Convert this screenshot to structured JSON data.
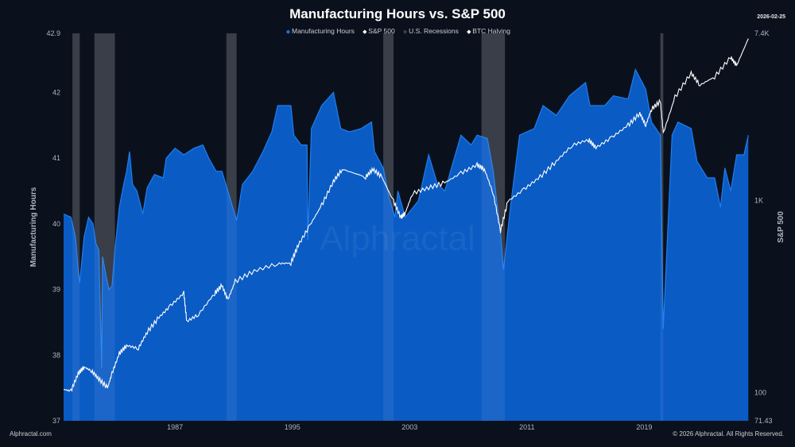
{
  "title": "Manufacturing Hours vs. S&P 500",
  "date": "2026-02-25",
  "footer": {
    "left": "Alphractal.com",
    "right": "© 2026 Alphractal. All Rights Reserved."
  },
  "watermark": "Alphractal",
  "legend": [
    {
      "label": "Manufacturing Hours",
      "color": "#1a73e8"
    },
    {
      "label": "S&P 500",
      "color": "#ffffff"
    },
    {
      "label": "U.S. Recessions",
      "color": "#3a4050"
    },
    {
      "label": "BTC Halving",
      "color": "#ffffff"
    }
  ],
  "chart_data": {
    "type": "area",
    "title": "Manufacturing Hours vs. S&P 500",
    "xlabel": "",
    "xlim": [
      1979.4,
      2026.3
    ],
    "xticks": [
      "1987",
      "1995",
      "2003",
      "2011",
      "2019"
    ],
    "left_axis": {
      "label": "Manufacturing Hours",
      "ylim": [
        37,
        42.9
      ],
      "ticks": [
        "37",
        "38",
        "39",
        "40",
        "41",
        "42",
        "42.9"
      ]
    },
    "right_axis": {
      "label": "S&P 500",
      "scale": "log",
      "ylim": [
        71.43,
        7400
      ],
      "ticks": [
        "71.43",
        "100",
        "1K",
        "7.4K"
      ]
    },
    "grid": false,
    "legend_placement": "top",
    "recessions": [
      [
        1980.0,
        1980.5
      ],
      [
        1981.5,
        1982.9
      ],
      [
        1990.5,
        1991.2
      ],
      [
        2001.2,
        2001.9
      ],
      [
        2007.9,
        2009.5
      ],
      [
        2020.1,
        2020.3
      ]
    ],
    "series": [
      {
        "name": "Manufacturing Hours",
        "type": "area",
        "color": "#0a5bc4",
        "x": [
          1979.4,
          1979.9,
          1980.2,
          1980.4,
          1980.5,
          1980.8,
          1981.1,
          1981.4,
          1981.6,
          1981.8,
          1982.0,
          1982.05,
          1982.3,
          1982.5,
          1982.7,
          1982.9,
          1983.2,
          1983.5,
          1983.7,
          1983.9,
          1984.1,
          1984.4,
          1984.8,
          1985.1,
          1985.6,
          1986.2,
          1986.4,
          1987.0,
          1987.6,
          1988.3,
          1988.9,
          1989.3,
          1989.8,
          1990.2,
          1990.8,
          1991.2,
          1991.6,
          1992.3,
          1993.0,
          1993.6,
          1994.0,
          1994.9,
          1995.1,
          1995.6,
          1996.0,
          1996.05,
          1996.3,
          1997.0,
          1997.8,
          1998.3,
          1998.9,
          1999.7,
          2000.4,
          2000.6,
          2001.2,
          2001.6,
          2002.0,
          2002.2,
          2002.7,
          2003.6,
          2004.3,
          2004.9,
          2005.4,
          2006.5,
          2007.2,
          2007.6,
          2008.3,
          2008.7,
          2009.2,
          2009.4,
          2009.9,
          2010.5,
          2011.5,
          2012.1,
          2013.0,
          2013.9,
          2015.0,
          2015.3,
          2016.3,
          2016.9,
          2017.9,
          2018.4,
          2019.1,
          2019.5,
          2020.1,
          2020.3,
          2020.9,
          2021.3,
          2022.2,
          2022.6,
          2023.3,
          2023.8,
          2024.2,
          2024.5,
          2024.9,
          2025.3,
          2025.8,
          2026.1
        ],
        "values": [
          40.15,
          40.1,
          39.8,
          39.3,
          39.1,
          39.8,
          40.1,
          40.0,
          39.7,
          39.6,
          37.8,
          39.5,
          39.2,
          39.0,
          39.05,
          39.6,
          40.25,
          40.6,
          40.8,
          41.1,
          40.6,
          40.5,
          40.15,
          40.55,
          40.75,
          40.7,
          41.0,
          41.15,
          41.05,
          41.15,
          41.2,
          41.0,
          40.8,
          40.8,
          40.35,
          40.05,
          40.6,
          40.8,
          41.1,
          41.4,
          41.8,
          41.8,
          41.35,
          41.2,
          41.2,
          39.75,
          41.45,
          41.8,
          42.0,
          41.45,
          41.4,
          41.45,
          41.55,
          41.1,
          40.85,
          40.4,
          40.1,
          40.5,
          40.1,
          40.35,
          41.05,
          40.6,
          40.5,
          41.35,
          41.2,
          41.35,
          41.3,
          40.8,
          39.85,
          39.3,
          40.3,
          41.35,
          41.45,
          41.8,
          41.65,
          41.95,
          42.15,
          41.8,
          41.8,
          41.95,
          41.9,
          42.35,
          42.05,
          41.55,
          41.35,
          38.4,
          41.35,
          41.55,
          41.45,
          40.95,
          40.7,
          40.7,
          40.25,
          40.85,
          40.5,
          41.05,
          41.05,
          41.35
        ]
      },
      {
        "name": "S&P 500",
        "type": "line",
        "color": "#ffffff",
        "axis": "right",
        "x": [
          1979.4,
          1979.9,
          1980.4,
          1980.8,
          1981.3,
          1981.8,
          1982.4,
          1982.7,
          1983.2,
          1983.7,
          1984.5,
          1985.1,
          1985.9,
          1986.7,
          1987.6,
          1987.8,
          1988.6,
          1989.7,
          1990.2,
          1990.6,
          1991.1,
          1992.4,
          1994.0,
          1994.9,
          1995.4,
          1996.2,
          1997.0,
          1997.8,
          1998.4,
          2000.0,
          2000.5,
          2001.1,
          2001.9,
          2002.4,
          2002.7,
          2003.2,
          2004.3,
          2005.4,
          2006.5,
          2007.6,
          2008.1,
          2008.7,
          2009.2,
          2009.7,
          2010.8,
          2011.9,
          2013.0,
          2014.1,
          2015.2,
          2015.7,
          2016.8,
          2017.9,
          2018.7,
          2019.1,
          2019.5,
          2020.1,
          2020.3,
          2021.1,
          2022.2,
          2022.8,
          2023.8,
          2024.9,
          2025.3,
          2026.1
        ],
        "values": [
          104,
          102,
          126,
          136,
          130,
          118,
          106,
          126,
          160,
          176,
          170,
          207,
          246,
          284,
          329,
          235,
          255,
          329,
          361,
          304,
          379,
          430,
          469,
          473,
          584,
          743,
          944,
          1255,
          1453,
          1325,
          1453,
          1325,
          990,
          816,
          860,
          1089,
          1165,
          1236,
          1387,
          1530,
          1453,
          1089,
          696,
          990,
          1143,
          1325,
          1600,
          1940,
          2070,
          1880,
          2130,
          2460,
          2840,
          2460,
          2990,
          3280,
          2240,
          3450,
          4600,
          3980,
          4400,
          5560,
          5020,
          6950
        ]
      }
    ]
  }
}
